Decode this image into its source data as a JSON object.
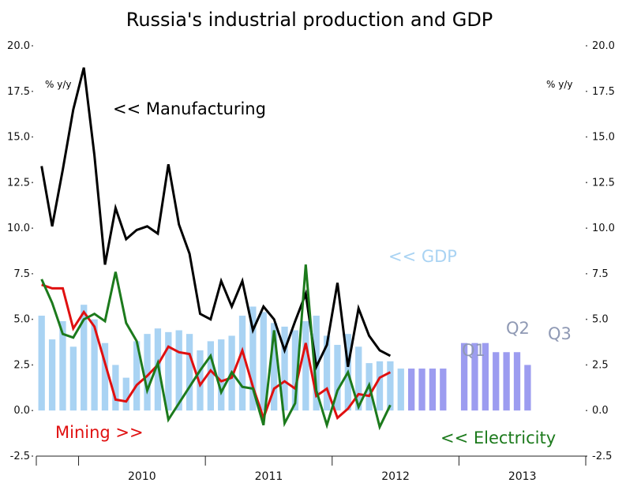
{
  "colors": {
    "gdp_actual": "#a9d3f3",
    "gdp_forecast": "#9c9cf0",
    "manufacturing": "#000000",
    "mining": "#e01010",
    "electricity": "#1c7a1c",
    "gdp_label": "#a9d3f3",
    "quarter_label": "#8f99b4"
  },
  "chart_data": {
    "type": "bar+line",
    "title": "Russia's industrial production and GDP",
    "unit_left": "% y/y",
    "unit_right": "% y/y",
    "ylim": [
      -2.5,
      20.0
    ],
    "y_ticks": [
      "20.0",
      "17.5",
      "15.0",
      "12.5",
      "10.0",
      "7.5",
      "5.0",
      "2.5",
      "0.0",
      "-2.5"
    ],
    "y_tick_values": [
      20.0,
      17.5,
      15.0,
      12.5,
      10.0,
      7.5,
      5.0,
      2.5,
      0.0,
      -2.5
    ],
    "x_labels": [
      "2010",
      "2011",
      "2012",
      "2013"
    ],
    "period": {
      "start": "2009-09",
      "end": "2013-12",
      "months": 52
    },
    "grid": false,
    "gdp_actual": [
      5.2,
      3.9,
      4.9,
      3.5,
      5.8,
      5.0,
      3.7,
      2.5,
      1.8,
      3.8,
      4.2,
      4.5,
      4.3,
      4.4,
      4.2,
      3.3,
      3.8,
      3.9,
      4.1,
      5.2,
      5.7,
      5.4,
      4.8,
      4.6,
      4.4,
      4.9,
      5.2,
      4.1,
      3.6,
      4.2,
      3.5,
      2.6,
      2.7,
      2.7,
      2.3
    ],
    "gdp_forecast": [
      2.3,
      2.3,
      2.3,
      2.3,
      0,
      3.7,
      3.7,
      3.7,
      3.2,
      3.2,
      3.2,
      2.5
    ],
    "series": [
      {
        "name": "Manufacturing",
        "values": [
          13.4,
          10.1,
          13.2,
          16.5,
          18.8,
          14.0,
          8.0,
          11.1,
          9.4,
          9.9,
          10.1,
          9.7,
          13.5,
          10.2,
          8.6,
          5.3,
          5.0,
          7.1,
          5.7,
          7.1,
          4.4,
          5.7,
          5.0,
          3.3,
          4.9,
          6.4,
          2.4,
          3.6,
          7.0,
          2.4,
          5.6,
          4.1,
          3.3,
          3.0
        ]
      },
      {
        "name": "Mining",
        "values": [
          6.9,
          6.7,
          6.7,
          4.5,
          5.4,
          4.6,
          2.6,
          0.6,
          0.5,
          1.4,
          1.9,
          2.5,
          3.5,
          3.2,
          3.1,
          1.4,
          2.2,
          1.6,
          1.8,
          3.3,
          1.3,
          -0.4,
          1.2,
          1.6,
          1.2,
          3.7,
          0.8,
          1.2,
          -0.4,
          0.1,
          0.9,
          0.8,
          1.8,
          2.1
        ]
      },
      {
        "name": "Electricity",
        "values": [
          7.2,
          5.9,
          4.2,
          4.0,
          5.0,
          5.3,
          4.9,
          7.6,
          4.8,
          3.8,
          1.1,
          2.6,
          -0.5,
          0.4,
          1.3,
          2.2,
          3.0,
          1.0,
          2.1,
          1.3,
          1.2,
          -0.8,
          4.4,
          -0.7,
          0.4,
          8.0,
          1.1,
          -0.8,
          1.1,
          2.1,
          0.2,
          1.4,
          -0.9,
          0.3
        ]
      }
    ],
    "annotations": {
      "manufacturing": "<< Manufacturing",
      "gdp": "<< GDP",
      "mining": "Mining >>",
      "electricity": "<< Electricity",
      "q1": "Q1",
      "q2": "Q2",
      "q3": "Q3"
    }
  }
}
